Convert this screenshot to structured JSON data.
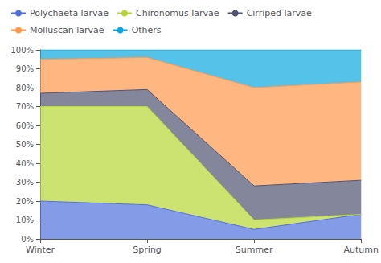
{
  "chart_data": {
    "type": "area",
    "stacked": true,
    "categories": [
      "Winter",
      "Spring",
      "Summer",
      "Autumn"
    ],
    "series": [
      {
        "name": "Polychaeta larvae",
        "values": [
          20,
          18,
          5,
          13
        ]
      },
      {
        "name": "Chironomus larvae",
        "values": [
          50,
          52,
          5,
          0
        ]
      },
      {
        "name": "Cirriped larvae",
        "values": [
          7,
          9,
          18,
          18
        ]
      },
      {
        "name": "Molluscan larvae",
        "values": [
          18,
          17,
          52,
          52
        ]
      },
      {
        "name": "Others",
        "values": [
          5,
          4,
          20,
          17
        ]
      }
    ],
    "ylim": [
      0,
      100
    ],
    "yticks": [
      {
        "value": 0,
        "label": "0%"
      },
      {
        "value": 10,
        "label": "10%"
      },
      {
        "value": 20,
        "label": "20%"
      },
      {
        "value": 30,
        "label": "30%"
      },
      {
        "value": 40,
        "label": "40%"
      },
      {
        "value": 50,
        "label": "50%"
      },
      {
        "value": 60,
        "label": "60%"
      },
      {
        "value": 70,
        "label": "70%"
      },
      {
        "value": 80,
        "label": "80%"
      },
      {
        "value": 90,
        "label": "90%"
      },
      {
        "value": 100,
        "label": "100%"
      }
    ],
    "grid": false,
    "legend": "upper left"
  }
}
